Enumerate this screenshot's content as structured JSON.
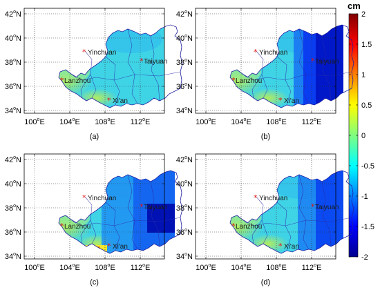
{
  "figure": {
    "colorbar": {
      "unit": "cm",
      "range": [
        -2,
        2
      ],
      "ticks": [
        "2",
        "1.5",
        "1",
        "0.5",
        "0",
        "-0.5",
        "-1",
        "-1.5",
        "-2"
      ],
      "colormap": "jet"
    },
    "axes": {
      "lon_ticks": [
        {
          "deg": "100",
          "suffix": "E"
        },
        {
          "deg": "104",
          "suffix": "E"
        },
        {
          "deg": "108",
          "suffix": "E"
        },
        {
          "deg": "112",
          "suffix": "E"
        }
      ],
      "lat_ticks": [
        {
          "deg": "42",
          "suffix": "N"
        },
        {
          "deg": "40",
          "suffix": "N"
        },
        {
          "deg": "38",
          "suffix": "N"
        },
        {
          "deg": "36",
          "suffix": "N"
        },
        {
          "deg": "34",
          "suffix": "N"
        }
      ],
      "degree_symbol": "o",
      "grid": "dotted"
    },
    "cities": [
      "Yinchuan",
      "Taiyuan",
      "Lanzhou",
      "Xi'an"
    ],
    "panels": [
      {
        "label": "(a)"
      },
      {
        "label": "(b)"
      },
      {
        "label": "(c)"
      },
      {
        "label": "(d)"
      }
    ]
  }
}
